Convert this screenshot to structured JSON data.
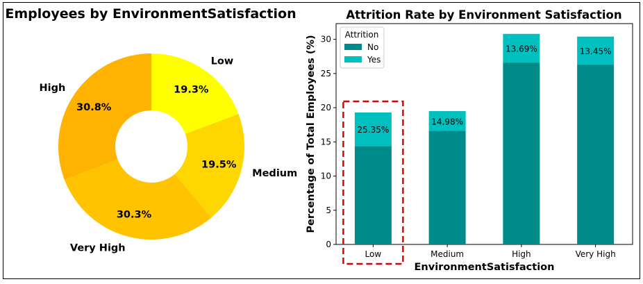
{
  "chart_data": [
    {
      "type": "pie",
      "title": "Employees by EnvironmentSatisfaction",
      "categories": [
        "Low",
        "Medium",
        "Very High",
        "High"
      ],
      "values": [
        19.3,
        19.5,
        30.3,
        30.8
      ],
      "value_labels": [
        "19.3%",
        "19.5%",
        "30.3%",
        "30.8%"
      ],
      "colors": [
        "#FFFF00",
        "#FFD700",
        "#FFC300",
        "#FFB300"
      ],
      "donut": true,
      "start": "top, clockwise"
    },
    {
      "type": "bar",
      "stacked": true,
      "title": "Attrition Rate by Environment Satisfaction",
      "xlabel": "EnvironmentSatisfaction",
      "ylabel": "Percentage of Total Employees (%)",
      "categories": [
        "Low",
        "Medium",
        "High",
        "Very High"
      ],
      "ylim": [
        0,
        32.3
      ],
      "yticks": [
        "0",
        "5",
        "10",
        "15",
        "20",
        "25",
        "30"
      ],
      "legend": {
        "title": "Attrition",
        "position": "top-left"
      },
      "series": [
        {
          "name": "No",
          "color": "#008B8B",
          "values": [
            14.4,
            16.6,
            26.6,
            26.3
          ]
        },
        {
          "name": "Yes",
          "color": "#00BFBF",
          "values": [
            4.9,
            2.9,
            4.2,
            4.1
          ]
        }
      ],
      "bar_labels": [
        "25.35%",
        "14.98%",
        "13.69%",
        "13.45%"
      ],
      "highlight": {
        "category": "Low",
        "color": "#E00000",
        "style": "dashed"
      }
    }
  ]
}
